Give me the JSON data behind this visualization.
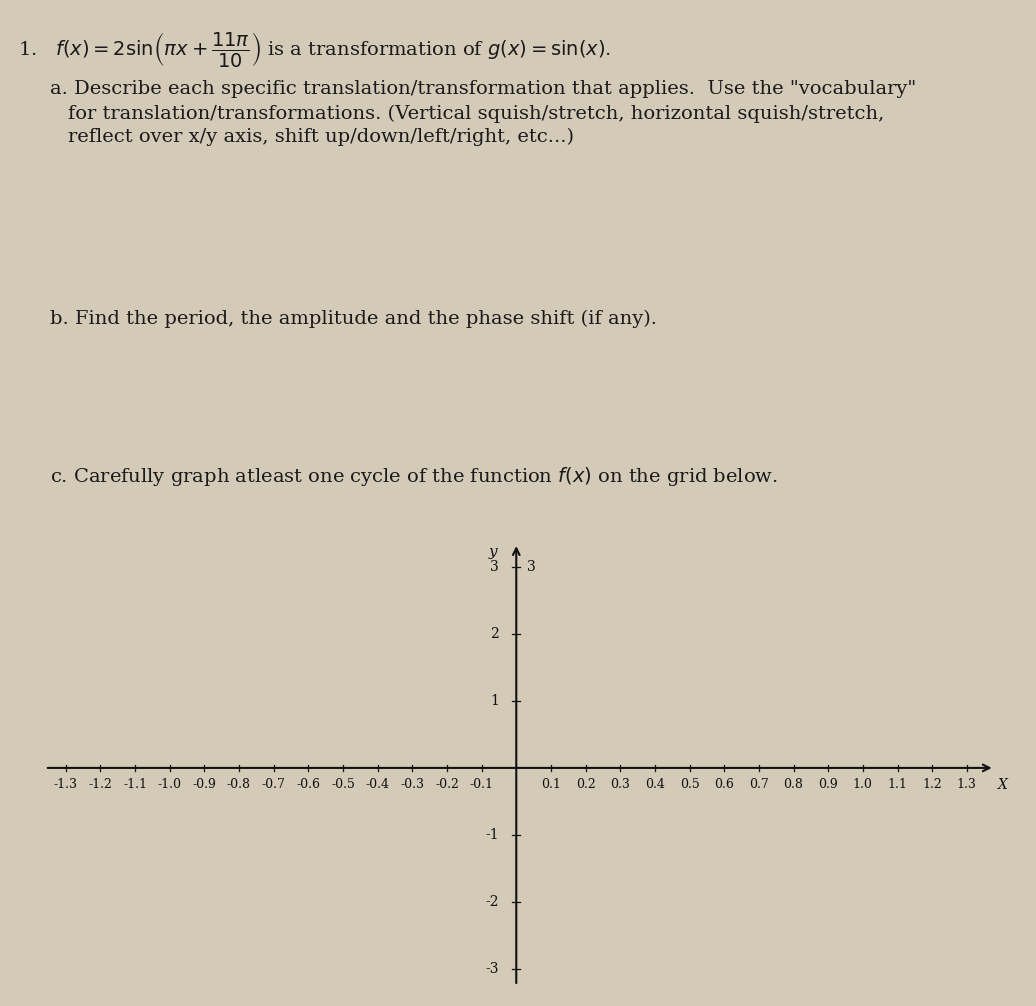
{
  "background_color": "#d3cab8",
  "text_color": "#1a1a1a",
  "x_min": -1.3,
  "x_max": 1.3,
  "y_min": -3,
  "y_max": 3,
  "x_tick_step": 0.1,
  "y_tick_step": 1,
  "x_label": "X",
  "y_label": "y",
  "axis_color": "#111111",
  "font_size_text": 14,
  "font_size_tick": 9,
  "part_a_line1": "a. Describe each specific translation/transformation that applies.  Use the \"vocabulary\"",
  "part_a_line2": "   for translation/transformations. (Vertical squish/stretch, horizontal squish/stretch,",
  "part_a_line3": "   reflect over x/y axis, shift up/down/left/right, etc...)",
  "part_b": "b. Find the period, the amplitude and the phase shift (if any).",
  "part_c": "c. Carefully graph atleast one cycle of the function f(x) on the grid below."
}
